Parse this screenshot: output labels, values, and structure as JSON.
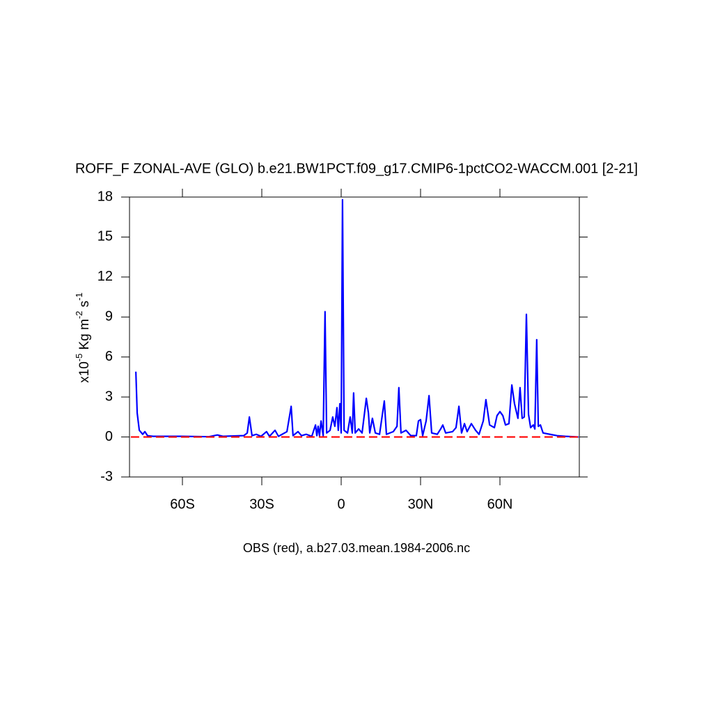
{
  "chart_data": {
    "type": "line",
    "title": "ROFF_F ZONAL-AVE (GLO) b.e21.BW1PCT.f09_g17.CMIP6-1pctCO2-WACCM.001 [2-21]",
    "ylabel": [
      "x10",
      "-5",
      " Kg m",
      "-2",
      " s",
      "-1"
    ],
    "xlabel": "OBS (red), a.b27.03.mean.1984-2006.nc",
    "xlim": [
      -80,
      90
    ],
    "ylim": [
      -3,
      18
    ],
    "xticks": [
      {
        "value": -60,
        "label": "60S"
      },
      {
        "value": -30,
        "label": "30S"
      },
      0,
      {
        "value": 30,
        "label": "30N"
      },
      {
        "value": 60,
        "label": "60N"
      }
    ],
    "yticks": [
      -3,
      0,
      3,
      6,
      9,
      12,
      15,
      18
    ],
    "series": [
      {
        "color": "#0000ff",
        "x": [
          -77.6,
          -77.1,
          -76.3,
          -75.0,
          -74.2,
          -73.2,
          -71.1,
          -60.5,
          -50.0,
          -46.8,
          -44.7,
          -36.8,
          -35.5,
          -34.7,
          -33.7,
          -32.1,
          -30.3,
          -28.2,
          -27.1,
          -25.0,
          -23.7,
          -20.5,
          -18.9,
          -18.2,
          -16.3,
          -15.0,
          -13.2,
          -11.1,
          -9.7,
          -9.2,
          -8.7,
          -8.2,
          -7.6,
          -6.8,
          -6.1,
          -5.5,
          -4.2,
          -3.2,
          -2.4,
          -1.6,
          -1.1,
          -0.5,
          0,
          0.5,
          1.1,
          2.4,
          3.4,
          4.2,
          4.7,
          5.3,
          6.6,
          7.9,
          9.5,
          10.3,
          10.8,
          11.8,
          12.9,
          14.5,
          16.3,
          17.1,
          19.7,
          21.1,
          21.8,
          22.6,
          24.5,
          26.3,
          28.4,
          29.2,
          30.0,
          30.8,
          32.1,
          33.2,
          34.2,
          36.3,
          37.6,
          38.4,
          39.5,
          42.1,
          43.4,
          44.5,
          45.5,
          46.6,
          47.6,
          49.2,
          50.8,
          52.1,
          53.7,
          54.7,
          56.1,
          57.9,
          58.9,
          60.0,
          61.1,
          62.1,
          63.4,
          64.5,
          65.5,
          66.8,
          67.6,
          68.4,
          69.2,
          70.0,
          70.8,
          71.6,
          72.6,
          73.2,
          73.9,
          74.5,
          75.3,
          76.3,
          78.9,
          81.6,
          84.7,
          89.7
        ],
        "values": [
          4.9,
          1.8,
          0.5,
          0.2,
          0.4,
          0.1,
          0.05,
          0.05,
          0.02,
          0.15,
          0.05,
          0.1,
          0.3,
          1.5,
          0.1,
          0.2,
          0.05,
          0.4,
          0.05,
          0.5,
          0.05,
          0.4,
          2.3,
          0.1,
          0.4,
          0.1,
          0.2,
          0.05,
          0.9,
          0.1,
          0.8,
          0.1,
          1.2,
          0.1,
          9.4,
          0.3,
          0.5,
          1.5,
          0.8,
          2.2,
          0.5,
          2.5,
          0.3,
          17.8,
          0.5,
          0.3,
          1.5,
          0.3,
          3.3,
          0.3,
          0.6,
          0.3,
          2.9,
          1.8,
          0.3,
          1.4,
          0.3,
          0.2,
          2.7,
          0.2,
          0.4,
          0.8,
          3.7,
          0.3,
          0.5,
          0.1,
          0.1,
          1.2,
          1.3,
          0.1,
          1.2,
          3.1,
          0.3,
          0.2,
          0.6,
          0.9,
          0.3,
          0.4,
          0.7,
          2.3,
          0.3,
          1.0,
          0.4,
          1.0,
          0.5,
          0.2,
          1.2,
          2.8,
          0.9,
          0.7,
          1.6,
          1.9,
          1.6,
          0.9,
          1.0,
          3.9,
          2.5,
          1.4,
          3.7,
          1.4,
          1.5,
          9.2,
          1.7,
          0.7,
          0.9,
          0.6,
          7.3,
          0.8,
          0.9,
          0.3,
          0.2,
          0.1,
          0.05,
          0
        ]
      },
      {
        "color": "#ff0000",
        "dashed": true,
        "x": [
          -79.5,
          89.7
        ],
        "values": [
          0,
          0
        ]
      }
    ]
  }
}
